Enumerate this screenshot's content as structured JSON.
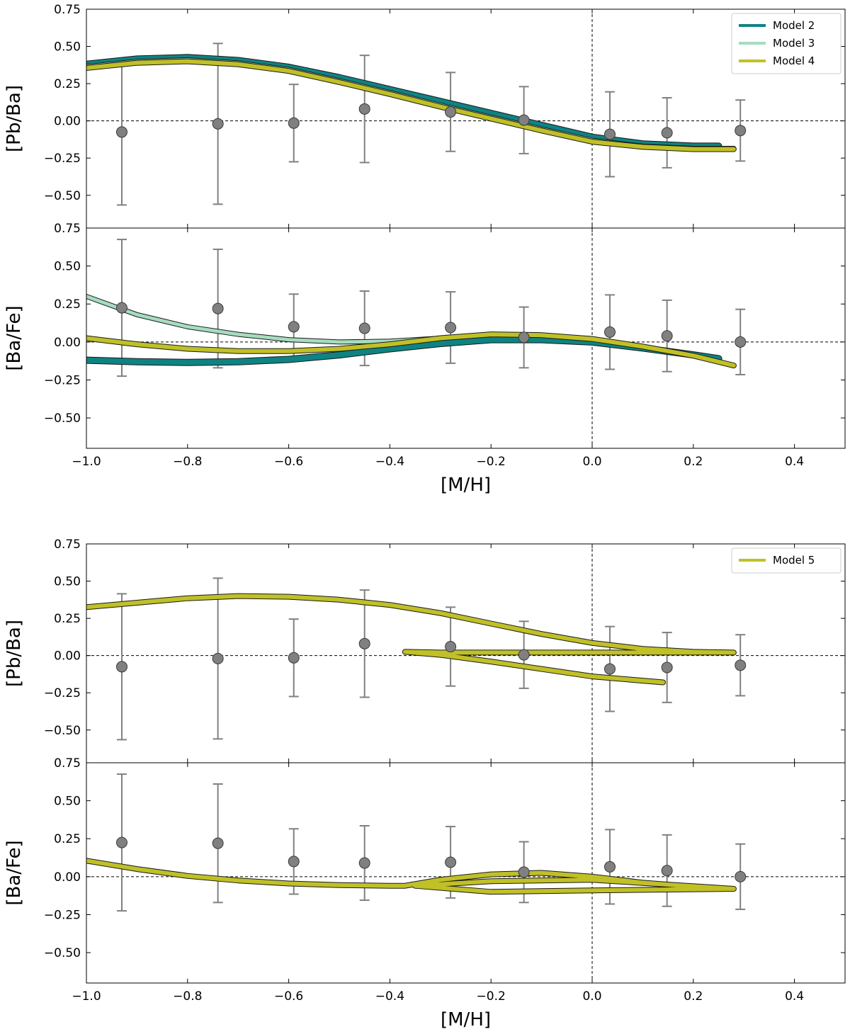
{
  "colors": {
    "model2": "#0e8383",
    "model3": "#a6dcbf",
    "model4": "#c0c027",
    "model5": "#c0c027",
    "obs": "#808080",
    "zero_line": "#000000"
  },
  "chart_data": [
    {
      "type": "line",
      "title": "",
      "xlabel": "",
      "ylabel": "[Pb/Ba]",
      "xlim": [
        -1.0,
        0.5
      ],
      "ylim": [
        -0.72,
        0.75
      ],
      "yticks": [
        "0.75",
        "0.50",
        "0.25",
        "0.00",
        "−0.25",
        "−0.50"
      ],
      "yticks_values": [
        0.75,
        0.5,
        0.25,
        0.0,
        -0.25,
        -0.5
      ],
      "legend": {
        "position": "top-right",
        "entries": [
          "Model 2",
          "Model 3",
          "Model 4"
        ]
      },
      "observations": {
        "x": [
          -0.93,
          -0.74,
          -0.59,
          -0.45,
          -0.28,
          -0.135,
          0.035,
          0.148,
          0.293
        ],
        "y": [
          -0.075,
          -0.02,
          -0.015,
          0.08,
          0.06,
          0.005,
          -0.09,
          -0.08,
          -0.065
        ],
        "err": [
          0.49,
          0.54,
          0.26,
          0.36,
          0.265,
          0.225,
          0.285,
          0.235,
          0.205
        ]
      },
      "series": [
        {
          "name": "Model 2",
          "color_key": "model2",
          "width": 8,
          "x": [
            -1.0,
            -0.9,
            -0.8,
            -0.7,
            -0.6,
            -0.5,
            -0.4,
            -0.3,
            -0.2,
            -0.1,
            0.0,
            0.1,
            0.2,
            0.25
          ],
          "y": [
            0.38,
            0.415,
            0.425,
            0.405,
            0.36,
            0.29,
            0.21,
            0.13,
            0.05,
            -0.03,
            -0.11,
            -0.155,
            -0.17,
            -0.17
          ]
        },
        {
          "name": "Model 3",
          "color_key": "model3",
          "width": 5,
          "x": [
            -1.0,
            -0.9,
            -0.8,
            -0.7,
            -0.6,
            -0.5,
            -0.4,
            -0.3,
            -0.2,
            -0.1,
            0.0,
            0.1,
            0.2,
            0.28
          ],
          "y": [
            0.365,
            0.4,
            0.41,
            0.39,
            0.345,
            0.27,
            0.19,
            0.105,
            0.025,
            -0.055,
            -0.13,
            -0.17,
            -0.185,
            -0.185
          ]
        },
        {
          "name": "Model 4",
          "color_key": "model4",
          "width": 6,
          "x": [
            -1.0,
            -0.9,
            -0.8,
            -0.7,
            -0.6,
            -0.5,
            -0.4,
            -0.3,
            -0.2,
            -0.1,
            0.0,
            0.1,
            0.2,
            0.28
          ],
          "y": [
            0.355,
            0.39,
            0.4,
            0.38,
            0.335,
            0.26,
            0.18,
            0.095,
            0.015,
            -0.065,
            -0.14,
            -0.175,
            -0.19,
            -0.19
          ]
        }
      ]
    },
    {
      "type": "line",
      "title": "",
      "xlabel": "[M/H]",
      "ylabel": "[Ba/Fe]",
      "xlim": [
        -1.0,
        0.5
      ],
      "ylim": [
        -0.7,
        0.75
      ],
      "yticks": [
        "0.75",
        "0.50",
        "0.25",
        "0.00",
        "−0.25",
        "−0.50"
      ],
      "yticks_values": [
        0.75,
        0.5,
        0.25,
        0.0,
        -0.25,
        -0.5
      ],
      "xticks": [
        "−1.0",
        "−0.8",
        "−0.6",
        "−0.4",
        "−0.2",
        "0.0",
        "0.2",
        "0.4"
      ],
      "xticks_values": [
        -1.0,
        -0.8,
        -0.6,
        -0.4,
        -0.2,
        0.0,
        0.2,
        0.4
      ],
      "observations": {
        "x": [
          -0.93,
          -0.74,
          -0.59,
          -0.45,
          -0.28,
          -0.135,
          0.035,
          0.148,
          0.293
        ],
        "y": [
          0.225,
          0.22,
          0.1,
          0.09,
          0.095,
          0.03,
          0.065,
          0.04,
          0.0
        ],
        "err": [
          0.45,
          0.39,
          0.215,
          0.245,
          0.235,
          0.2,
          0.245,
          0.235,
          0.215
        ]
      },
      "series": [
        {
          "name": "Model 3",
          "color_key": "model3",
          "width": 5,
          "x": [
            -1.0,
            -0.9,
            -0.8,
            -0.7,
            -0.6,
            -0.5,
            -0.4,
            -0.3,
            -0.2,
            -0.1,
            0.0,
            0.1,
            0.2,
            0.25
          ],
          "y": [
            0.3,
            0.18,
            0.1,
            0.05,
            0.015,
            0.0,
            0.005,
            0.025,
            0.035,
            0.03,
            0.0,
            -0.04,
            -0.085,
            -0.11
          ]
        },
        {
          "name": "Model 2",
          "color_key": "model2",
          "width": 8,
          "x": [
            -1.0,
            -0.9,
            -0.8,
            -0.7,
            -0.6,
            -0.5,
            -0.4,
            -0.3,
            -0.2,
            -0.1,
            0.0,
            0.1,
            0.2,
            0.25
          ],
          "y": [
            -0.12,
            -0.13,
            -0.135,
            -0.13,
            -0.115,
            -0.085,
            -0.045,
            -0.01,
            0.015,
            0.015,
            0.0,
            -0.04,
            -0.085,
            -0.11
          ]
        },
        {
          "name": "Model 4",
          "color_key": "model4",
          "width": 6,
          "x": [
            -1.0,
            -0.9,
            -0.8,
            -0.7,
            -0.6,
            -0.5,
            -0.4,
            -0.3,
            -0.2,
            -0.1,
            0.0,
            0.1,
            0.2,
            0.28
          ],
          "y": [
            0.025,
            -0.015,
            -0.045,
            -0.06,
            -0.06,
            -0.045,
            -0.015,
            0.025,
            0.05,
            0.045,
            0.02,
            -0.03,
            -0.09,
            -0.155
          ]
        }
      ]
    },
    {
      "type": "line",
      "title": "",
      "xlabel": "",
      "ylabel": "[Pb/Ba]",
      "xlim": [
        -1.0,
        0.5
      ],
      "ylim": [
        -0.72,
        0.75
      ],
      "yticks": [
        "0.75",
        "0.50",
        "0.25",
        "0.00",
        "−0.25",
        "−0.50"
      ],
      "yticks_values": [
        0.75,
        0.5,
        0.25,
        0.0,
        -0.25,
        -0.5
      ],
      "legend": {
        "position": "top-right",
        "entries": [
          "Model 5"
        ]
      },
      "observations": {
        "x": [
          -0.93,
          -0.74,
          -0.59,
          -0.45,
          -0.28,
          -0.135,
          0.035,
          0.148,
          0.293
        ],
        "y": [
          -0.075,
          -0.02,
          -0.015,
          0.08,
          0.06,
          0.005,
          -0.09,
          -0.08,
          -0.065
        ],
        "err": [
          0.49,
          0.54,
          0.26,
          0.36,
          0.265,
          0.225,
          0.285,
          0.235,
          0.205
        ]
      },
      "series": [
        {
          "name": "Model 5",
          "color_key": "model5",
          "width": 6,
          "x": [
            -1.0,
            -0.9,
            -0.8,
            -0.7,
            -0.6,
            -0.5,
            -0.4,
            -0.3,
            -0.2,
            -0.1,
            0.0,
            0.1,
            0.2,
            0.28,
            0.0,
            -0.3,
            -0.37,
            -0.3,
            -0.2,
            -0.1,
            0.0,
            0.14
          ],
          "y": [
            0.325,
            0.355,
            0.385,
            0.4,
            0.395,
            0.375,
            0.34,
            0.285,
            0.215,
            0.145,
            0.085,
            0.045,
            0.025,
            0.02,
            0.02,
            0.02,
            0.025,
            0.005,
            -0.04,
            -0.09,
            -0.14,
            -0.18
          ]
        }
      ]
    },
    {
      "type": "line",
      "title": "",
      "xlabel": "[M/H]",
      "ylabel": "[Ba/Fe]",
      "xlim": [
        -1.0,
        0.5
      ],
      "ylim": [
        -0.7,
        0.75
      ],
      "yticks": [
        "0.75",
        "0.50",
        "0.25",
        "0.00",
        "−0.25",
        "−0.50"
      ],
      "yticks_values": [
        0.75,
        0.5,
        0.25,
        0.0,
        -0.25,
        -0.5
      ],
      "xticks": [
        "−1.0",
        "−0.8",
        "−0.6",
        "−0.4",
        "−0.2",
        "0.0",
        "0.2",
        "0.4"
      ],
      "xticks_values": [
        -1.0,
        -0.8,
        -0.6,
        -0.4,
        -0.2,
        0.0,
        0.2,
        0.4
      ],
      "observations": {
        "x": [
          -0.93,
          -0.74,
          -0.59,
          -0.45,
          -0.28,
          -0.135,
          0.035,
          0.148,
          0.293
        ],
        "y": [
          0.225,
          0.22,
          0.1,
          0.09,
          0.095,
          0.03,
          0.065,
          0.04,
          0.0
        ],
        "err": [
          0.45,
          0.39,
          0.215,
          0.245,
          0.235,
          0.2,
          0.245,
          0.235,
          0.215
        ]
      },
      "series": [
        {
          "name": "Model 5",
          "color_key": "model5",
          "width": 6,
          "x": [
            -1.0,
            -0.9,
            -0.8,
            -0.7,
            -0.6,
            -0.5,
            -0.4,
            -0.37,
            -0.3,
            -0.2,
            -0.1,
            0.0,
            0.1,
            0.2,
            0.28,
            0.0,
            -0.2,
            -0.35,
            -0.2,
            0.0,
            0.28
          ],
          "y": [
            0.105,
            0.05,
            0.005,
            -0.025,
            -0.045,
            -0.055,
            -0.06,
            -0.06,
            -0.02,
            0.015,
            0.025,
            0.0,
            -0.04,
            -0.065,
            -0.08,
            -0.02,
            -0.03,
            -0.06,
            -0.1,
            -0.09,
            -0.08
          ]
        }
      ]
    }
  ]
}
